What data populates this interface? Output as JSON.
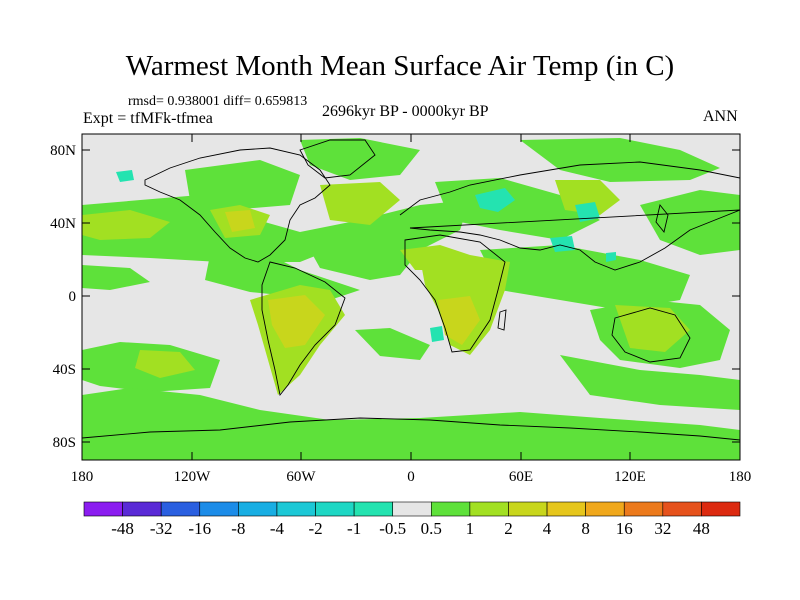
{
  "title": "Warmest Month Mean Surface Air Temp (in C)",
  "stats": "rmsd= 0.938001 diff= 0.659813",
  "experiment": "Expt = tfMFk-tfmea",
  "period": "2696kyr BP - 0000kyr BP",
  "season": "ANN",
  "lat_ticks": [
    "80N",
    "40N",
    "0",
    "40S",
    "80S"
  ],
  "lon_ticks": [
    "180",
    "120W",
    "60W",
    "0",
    "60E",
    "120E",
    "180"
  ],
  "colorbar": {
    "labels": [
      "-48",
      "-32",
      "-16",
      "-8",
      "-4",
      "-2",
      "-1",
      "-0.5",
      "0.5",
      "1",
      "2",
      "4",
      "8",
      "16",
      "32",
      "48"
    ],
    "colors": [
      "#8b1df0",
      "#5a2ad6",
      "#2a5fe0",
      "#1c8ce8",
      "#18aee3",
      "#1cc8d6",
      "#1ed7c4",
      "#24e3b0",
      "#e6e6e6",
      "#5ee13a",
      "#a2e022",
      "#c8d61c",
      "#e6c61c",
      "#f0a81c",
      "#ec7a1c",
      "#e6521c",
      "#dc2a10"
    ]
  },
  "colors": {
    "neutral": "#e6e6e6",
    "green": "#5ee13a",
    "lime": "#a2e022",
    "olive": "#c8d61c",
    "cyan": "#24e3b0",
    "coast": "#000000"
  }
}
